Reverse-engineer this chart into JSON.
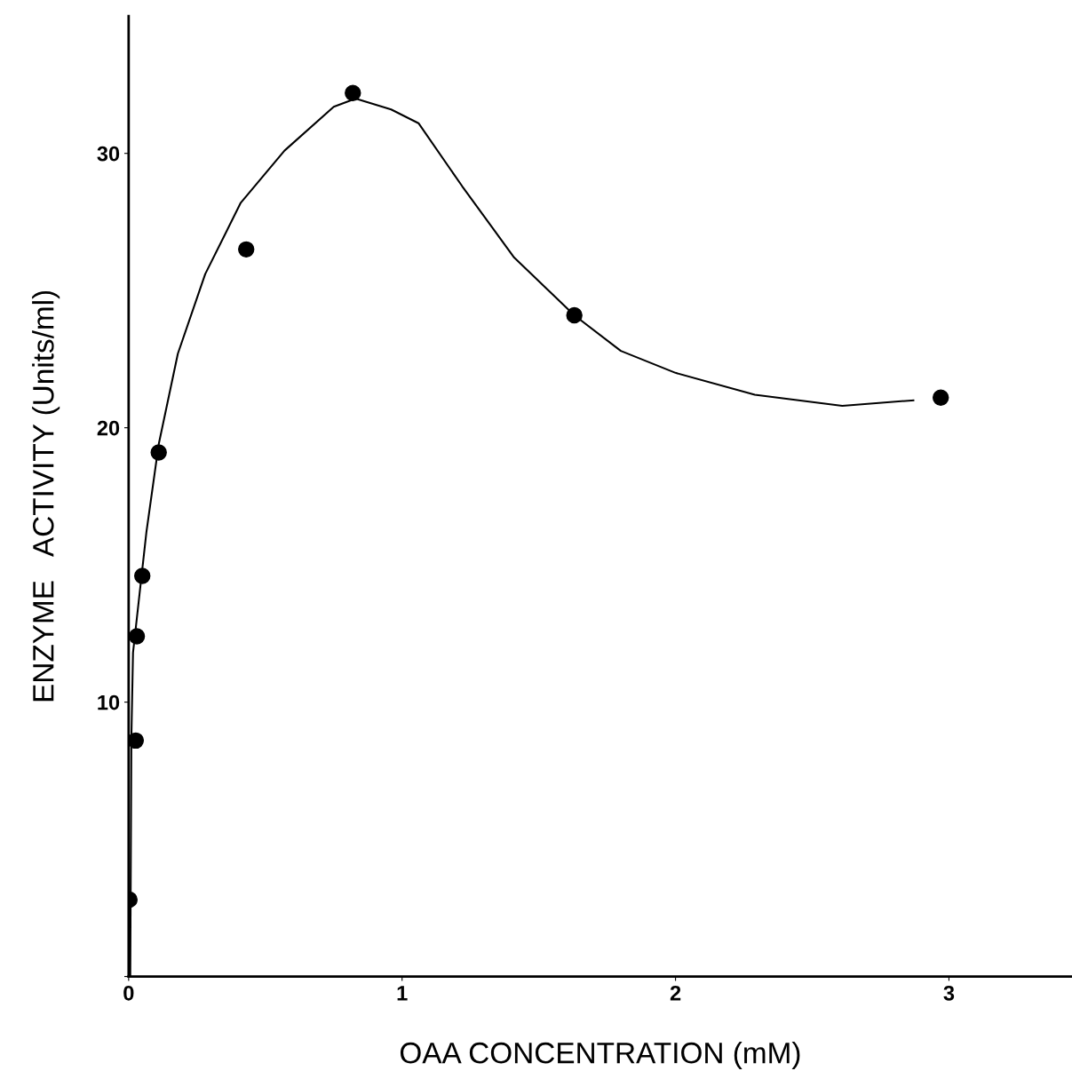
{
  "chart_data": {
    "type": "scatter",
    "xlabel": "OAA CONCENTRATION (mM)",
    "ylabel": "ENZYME   ACTIVITY (Units/ml)",
    "xlim": [
      0,
      3.45
    ],
    "ylim": [
      0,
      35
    ],
    "xticks": [
      0,
      1,
      2,
      3
    ],
    "yticks": [
      {
        "value": 0,
        "label": null
      },
      10,
      20,
      30
    ],
    "grid": false,
    "series": [
      {
        "color": "#000000",
        "marker": "circle",
        "x": [
          0.003,
          0.026,
          0.03,
          0.05,
          0.11,
          0.43,
          0.82,
          1.63,
          2.97
        ],
        "values": [
          2.8,
          8.6,
          12.4,
          14.6,
          19.1,
          26.5,
          32.2,
          24.1,
          21.1
        ]
      },
      {
        "type": "line",
        "color": "#000000",
        "marker": "none",
        "line_style": "solid",
        "x": [
          0.006,
          0.01,
          0.016,
          0.065,
          0.11,
          0.18,
          0.28,
          0.41,
          0.57,
          0.75,
          0.83,
          0.96,
          1.06,
          1.22,
          1.41,
          1.63,
          1.8,
          2.0,
          2.29,
          2.61,
          2.87
        ],
        "values": [
          0,
          8.7,
          11.8,
          16.2,
          19.4,
          22.7,
          25.6,
          28.2,
          30.1,
          31.7,
          32.0,
          31.6,
          31.1,
          28.8,
          26.2,
          24.1,
          22.8,
          22.0,
          21.2,
          20.8,
          21.0
        ]
      }
    ]
  }
}
